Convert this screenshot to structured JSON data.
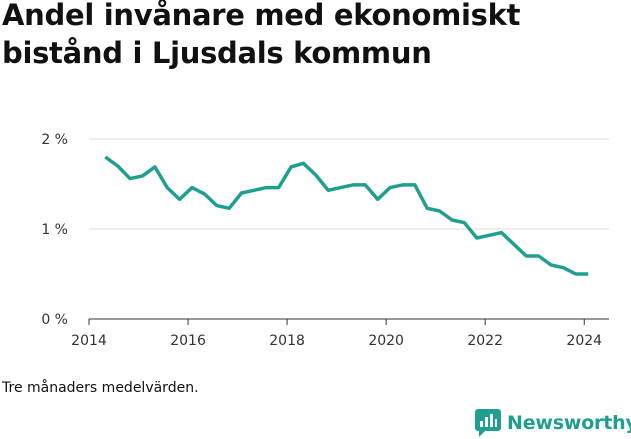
{
  "title": "Andel invånare med ekonomiskt bistånd i Ljusdals kommun",
  "caption": "Tre månaders medelvärden.",
  "brand": {
    "name": "Newsworthy",
    "icon": "newsworthy-logo-icon",
    "color": "#1f9f8f"
  },
  "chart_data": {
    "type": "line",
    "title": "Andel invånare med ekonomiskt bistånd i Ljusdals kommun",
    "xlabel": "",
    "ylabel": "",
    "x_ticks": [
      "2014",
      "2016",
      "2018",
      "2020",
      "2022",
      "2024"
    ],
    "y_ticks": [
      "0 %",
      "1 %",
      "2 %"
    ],
    "xlim": [
      2014,
      2024.5
    ],
    "ylim": [
      0,
      2
    ],
    "grid": true,
    "legend": "none",
    "line_color": "#1f9f8f",
    "series": [
      {
        "x": [
          2014.33,
          2014.58,
          2014.83,
          2015.08,
          2015.33,
          2015.58,
          2015.83,
          2016.08,
          2016.33,
          2016.58,
          2016.83,
          2017.08,
          2017.33,
          2017.58,
          2017.83,
          2018.08,
          2018.33,
          2018.58,
          2018.83,
          2019.08,
          2019.33,
          2019.58,
          2019.83,
          2020.08,
          2020.33,
          2020.58,
          2020.83,
          2021.08,
          2021.33,
          2021.58,
          2021.83,
          2022.08,
          2022.33,
          2022.58,
          2022.83,
          2023.08,
          2023.33,
          2023.58,
          2023.83,
          2024.08
        ],
        "values": [
          1.8,
          1.7,
          1.56,
          1.59,
          1.69,
          1.46,
          1.33,
          1.46,
          1.39,
          1.26,
          1.23,
          1.4,
          1.43,
          1.46,
          1.46,
          1.69,
          1.73,
          1.6,
          1.43,
          1.46,
          1.49,
          1.49,
          1.33,
          1.46,
          1.49,
          1.49,
          1.23,
          1.2,
          1.1,
          1.07,
          0.9,
          0.93,
          0.96,
          0.83,
          0.7,
          0.7,
          0.6,
          0.57,
          0.5,
          0.5
        ]
      }
    ]
  }
}
